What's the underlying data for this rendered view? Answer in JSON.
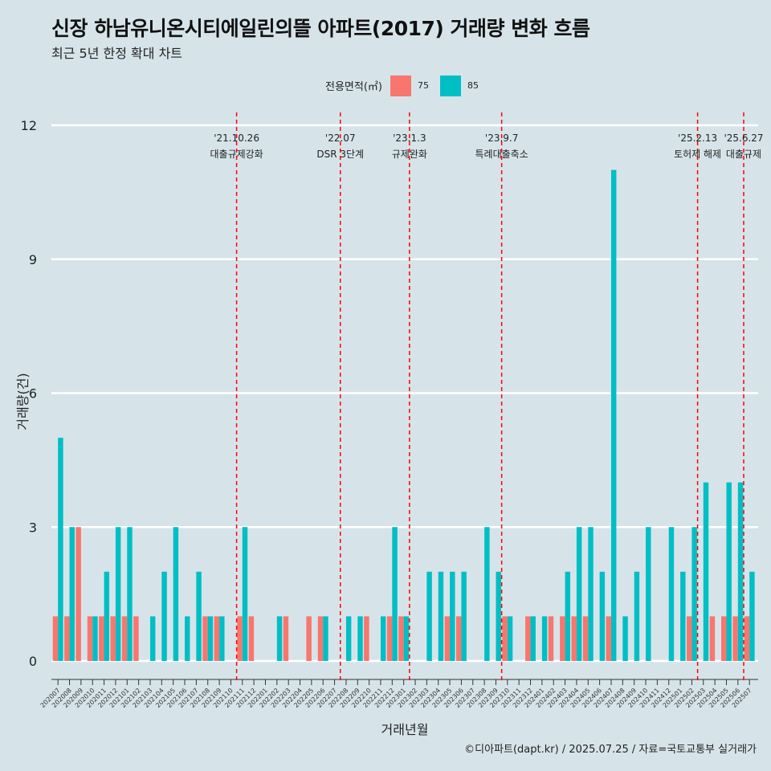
{
  "title": "신장 하남유니온시티에일린의뜰 아파트(2017) 거래량 변화 흐름",
  "subtitle": "최근 5년 한정 확대 차트",
  "footer": "©디아파트(dapt.kr) / 2025.07.25 / 자료=국토교통부 실거래가",
  "legend": {
    "title": "전용면적(㎡)",
    "items": [
      {
        "label": "75",
        "color": "#f8766d"
      },
      {
        "label": "85",
        "color": "#00bfc4"
      }
    ]
  },
  "chart_data": {
    "type": "bar",
    "title": "신장 하남유니온시티에일린의뜰 아파트(2017) 거래량 변화 흐름",
    "xlabel": "거래년월",
    "ylabel": "거래량(건)",
    "ylim": [
      0,
      12
    ],
    "yticks": [
      0,
      3,
      6,
      9,
      12
    ],
    "categories": [
      "202007",
      "202008",
      "202009",
      "202010",
      "202011",
      "202012",
      "202101",
      "202102",
      "202103",
      "202104",
      "202105",
      "202106",
      "202107",
      "202108",
      "202109",
      "202110",
      "202111",
      "202112",
      "202201",
      "202202",
      "202203",
      "202204",
      "202205",
      "202206",
      "202207",
      "202208",
      "202209",
      "202210",
      "202211",
      "202212",
      "202301",
      "202302",
      "202303",
      "202304",
      "202305",
      "202306",
      "202307",
      "202308",
      "202309",
      "202310",
      "202311",
      "202312",
      "202401",
      "202402",
      "202403",
      "202404",
      "202405",
      "202406",
      "202407",
      "202408",
      "202409",
      "202410",
      "202411",
      "202412",
      "202501",
      "202502",
      "202503",
      "202504",
      "202505",
      "202506",
      "202507"
    ],
    "series": [
      {
        "name": "75",
        "color": "#f8766d",
        "values": [
          1,
          1,
          3,
          1,
          1,
          1,
          1,
          1,
          0,
          0,
          0,
          0,
          0,
          1,
          1,
          0,
          1,
          1,
          0,
          0,
          1,
          0,
          1,
          1,
          0,
          0,
          0,
          1,
          0,
          1,
          1,
          0,
          0,
          0,
          1,
          1,
          0,
          0,
          0,
          1,
          0,
          1,
          0,
          1,
          1,
          1,
          1,
          0,
          1,
          0,
          0,
          0,
          0,
          0,
          0,
          1,
          0,
          1,
          1,
          1,
          1
        ]
      },
      {
        "name": "85",
        "color": "#00bfc4",
        "values": [
          5,
          3,
          0,
          1,
          2,
          3,
          3,
          0,
          1,
          2,
          3,
          1,
          2,
          1,
          1,
          0,
          3,
          0,
          0,
          1,
          0,
          0,
          0,
          1,
          0,
          1,
          1,
          0,
          1,
          3,
          1,
          0,
          2,
          2,
          2,
          2,
          0,
          3,
          2,
          1,
          0,
          1,
          1,
          0,
          2,
          3,
          3,
          2,
          11,
          1,
          2,
          3,
          0,
          3,
          2,
          3,
          4,
          0,
          4,
          4,
          2
        ]
      }
    ],
    "events": [
      {
        "date": "'21.10.26",
        "label": "대출규제강화",
        "after": "202110"
      },
      {
        "date": "'22.07",
        "label": "DSR 3단계",
        "after": "202207"
      },
      {
        "date": "'23.1.3",
        "label": "규제완화",
        "after": "202301"
      },
      {
        "date": "'23.9.7",
        "label": "특례대출축소",
        "after": "202309"
      },
      {
        "date": "'25.2.13",
        "label": "토허제 해제",
        "after": "202502"
      },
      {
        "date": "'25.6.27",
        "label": "대출규제",
        "after": "202506"
      }
    ]
  }
}
